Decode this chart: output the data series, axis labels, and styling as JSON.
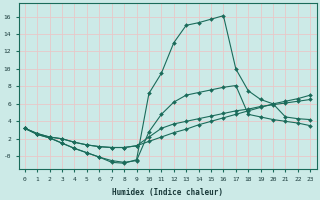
{
  "xlabel": "Humidex (Indice chaleur)",
  "bg_color": "#cceae7",
  "grid_color": "#e8c8c8",
  "line_color": "#1a6b5a",
  "xlim": [
    -0.5,
    23.5
  ],
  "ylim": [
    -1.5,
    17.5
  ],
  "xticks": [
    0,
    1,
    2,
    3,
    4,
    5,
    6,
    7,
    8,
    9,
    10,
    11,
    12,
    13,
    14,
    15,
    16,
    17,
    18,
    19,
    20,
    21,
    22,
    23
  ],
  "yticks": [
    0,
    2,
    4,
    6,
    8,
    10,
    12,
    14,
    16
  ],
  "ytick_labels": [
    "-0",
    "2",
    "4",
    "6",
    "8",
    "10",
    "12",
    "14",
    "16"
  ],
  "line1_x": [
    0,
    1,
    2,
    3,
    4,
    5,
    6,
    7,
    8,
    9,
    10,
    11,
    12,
    13,
    14,
    15,
    16,
    17,
    18,
    19,
    20,
    21,
    22,
    23
  ],
  "line1_y": [
    3.2,
    2.6,
    2.2,
    2.0,
    1.6,
    1.3,
    1.1,
    1.0,
    1.0,
    1.2,
    1.7,
    2.2,
    2.7,
    3.1,
    3.6,
    4.0,
    4.4,
    4.8,
    5.2,
    5.6,
    6.0,
    6.3,
    6.6,
    7.0
  ],
  "line2_x": [
    0,
    1,
    2,
    3,
    4,
    5,
    6,
    7,
    8,
    9,
    10,
    11,
    12,
    13,
    14,
    15,
    16,
    17,
    18,
    19,
    20,
    21,
    22,
    23
  ],
  "line2_y": [
    3.2,
    2.6,
    2.2,
    2.0,
    1.6,
    1.3,
    1.1,
    1.0,
    1.0,
    1.2,
    2.2,
    3.2,
    3.7,
    4.0,
    4.3,
    4.6,
    4.9,
    5.2,
    5.4,
    5.7,
    5.9,
    6.1,
    6.3,
    6.5
  ],
  "line3_x": [
    0,
    1,
    2,
    3,
    4,
    5,
    6,
    7,
    8,
    9,
    10,
    11,
    12,
    13,
    14,
    15,
    16,
    17,
    18,
    19,
    20,
    21,
    22,
    23
  ],
  "line3_y": [
    3.2,
    2.5,
    2.1,
    1.5,
    0.9,
    0.4,
    -0.1,
    -0.5,
    -0.7,
    -0.5,
    2.8,
    4.8,
    6.2,
    7.0,
    7.3,
    7.6,
    7.9,
    8.1,
    4.8,
    4.5,
    4.2,
    4.0,
    3.8,
    3.5
  ],
  "line4_x": [
    0,
    1,
    2,
    3,
    4,
    5,
    6,
    7,
    8,
    9,
    10,
    11,
    12,
    13,
    14,
    15,
    16,
    17,
    18,
    19,
    20,
    21,
    22,
    23
  ],
  "line4_y": [
    3.2,
    2.5,
    2.1,
    1.5,
    0.9,
    0.4,
    -0.1,
    -0.7,
    -0.8,
    -0.4,
    7.2,
    9.5,
    13.0,
    15.0,
    15.3,
    15.7,
    16.1,
    10.0,
    7.5,
    6.5,
    6.0,
    4.5,
    4.3,
    4.2
  ]
}
